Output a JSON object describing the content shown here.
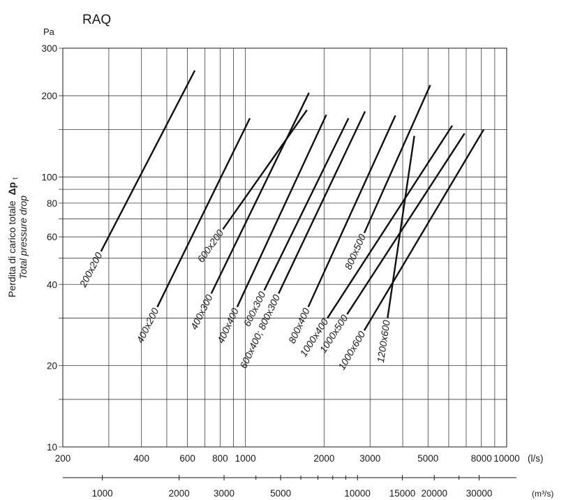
{
  "chart_data": {
    "type": "line",
    "title": "RAQ",
    "y_unit": "Pa",
    "ylabel_it": "Perdita di carico totale",
    "ylabel_symbol": "Δp",
    "ylabel_symbol_sub": "t",
    "ylabel_en": "Total pressure drop",
    "x_unit": "(l/s)",
    "x2_unit": "(m³/s)",
    "x_scale": "log",
    "y_scale": "log",
    "xlim": [
      200,
      10000
    ],
    "ylim": [
      10,
      300
    ],
    "x_ticks": [
      {
        "value": 200,
        "label": "200"
      },
      {
        "value": 400,
        "label": "400"
      },
      {
        "value": 600,
        "label": "600"
      },
      {
        "value": 800,
        "label": "800"
      },
      {
        "value": 1000,
        "label": "1000"
      },
      {
        "value": 2000,
        "label": "2000"
      },
      {
        "value": 3000,
        "label": "3000"
      },
      {
        "value": 5000,
        "label": "5000"
      },
      {
        "value": 8000,
        "label": "8000"
      },
      {
        "value": 10000,
        "label": "10000"
      }
    ],
    "x_gridlines": [
      200,
      300,
      400,
      500,
      600,
      700,
      800,
      900,
      1000,
      2000,
      3000,
      4000,
      5000,
      6000,
      7000,
      8000,
      9000,
      10000
    ],
    "y_ticks": [
      {
        "value": 10,
        "label": "10"
      },
      {
        "value": 20,
        "label": "20"
      },
      {
        "value": 40,
        "label": "40"
      },
      {
        "value": 60,
        "label": "60"
      },
      {
        "value": 80,
        "label": "80"
      },
      {
        "value": 100,
        "label": "100"
      },
      {
        "value": 200,
        "label": "200"
      },
      {
        "value": 300,
        "label": "300"
      }
    ],
    "y_gridlines": [
      10,
      15,
      20,
      30,
      40,
      50,
      60,
      70,
      80,
      90,
      100,
      150,
      200,
      300
    ],
    "x2_ticks": [
      {
        "value": 1000,
        "label": "1000"
      },
      {
        "value": 2000,
        "label": "2000"
      },
      {
        "value": 3000,
        "label": "3000"
      },
      {
        "value": 5000,
        "label": "5000"
      },
      {
        "value": 10000,
        "label": "10000"
      },
      {
        "value": 15000,
        "label": "15000"
      },
      {
        "value": 20000,
        "label": "20000"
      },
      {
        "value": 30000,
        "label": "30000"
      }
    ],
    "x2_minor_ticks": [
      4000,
      6000,
      7000,
      8000,
      9000,
      25000
    ],
    "series": [
      {
        "name": "200x200",
        "points": [
          [
            280,
            53
          ],
          [
            640,
            248
          ]
        ]
      },
      {
        "name": "400x200",
        "points": [
          [
            460,
            33
          ],
          [
            1040,
            165
          ]
        ]
      },
      {
        "name": "400x300",
        "points": [
          [
            740,
            37
          ],
          [
            1750,
            205
          ]
        ]
      },
      {
        "name": "400x400",
        "points": [
          [
            930,
            33
          ],
          [
            2040,
            170
          ]
        ]
      },
      {
        "name": "600x200",
        "points": [
          [
            820,
            64
          ],
          [
            1720,
            177
          ]
        ]
      },
      {
        "name": "600x300",
        "points": [
          [
            1180,
            38
          ],
          [
            2480,
            165
          ]
        ]
      },
      {
        "name": "600x400; 800x300",
        "points": [
          [
            1340,
            37
          ],
          [
            2870,
            175
          ]
        ]
      },
      {
        "name": "800x400",
        "points": [
          [
            1740,
            33
          ],
          [
            3750,
            169
          ]
        ]
      },
      {
        "name": "800x500",
        "points": [
          [
            2850,
            62
          ],
          [
            5100,
            219
          ]
        ]
      },
      {
        "name": "1000x400",
        "points": [
          [
            2060,
            30
          ],
          [
            6190,
            155
          ]
        ]
      },
      {
        "name": "1000x500",
        "points": [
          [
            2450,
            31
          ],
          [
            6900,
            145
          ]
        ]
      },
      {
        "name": "1000x600",
        "points": [
          [
            2850,
            27
          ],
          [
            8170,
            150
          ]
        ]
      },
      {
        "name": "1200x600",
        "points": [
          [
            3500,
            30
          ],
          [
            4430,
            142
          ]
        ]
      }
    ],
    "grid": true,
    "legend": "none"
  }
}
